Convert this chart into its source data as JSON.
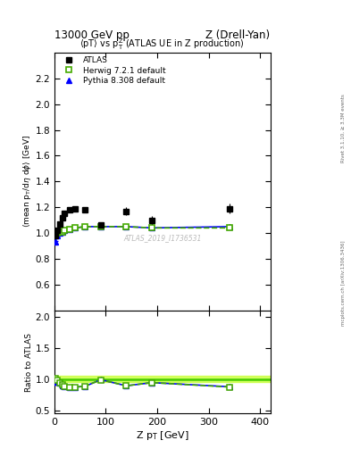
{
  "title_left": "13000 GeV pp",
  "title_right": "Z (Drell-Yan)",
  "main_title": "<pT> vs p$_{T}^{Z}$ (ATLAS UE in Z production)",
  "ylabel_main": "<mean p_{T}/d\\eta d\\phi> [GeV]",
  "ylabel_ratio": "Ratio to ATLAS",
  "xlabel": "Z p_{T} [GeV]",
  "right_label_top": "Rivet 3.1.10, ≥ 3.3M events",
  "right_label_bot": "mcplots.cern.ch [arXiv:1306.3436]",
  "watermark": "ATLAS_2019_I1736531",
  "atlas_x": [
    2,
    5,
    10,
    15,
    20,
    30,
    40,
    60,
    90,
    140,
    190,
    340
  ],
  "atlas_y": [
    0.98,
    1.02,
    1.07,
    1.12,
    1.15,
    1.18,
    1.19,
    1.18,
    1.06,
    1.17,
    1.1,
    1.19
  ],
  "atlas_yerr": [
    0.02,
    0.02,
    0.02,
    0.02,
    0.02,
    0.02,
    0.02,
    0.02,
    0.02,
    0.03,
    0.03,
    0.04
  ],
  "herwig_x": [
    2,
    5,
    10,
    15,
    20,
    30,
    40,
    60,
    90,
    140,
    190,
    340
  ],
  "herwig_y": [
    0.99,
    1.0,
    1.01,
    1.01,
    1.02,
    1.03,
    1.04,
    1.05,
    1.05,
    1.05,
    1.04,
    1.04
  ],
  "herwig_yerr": [
    0.003,
    0.003,
    0.003,
    0.003,
    0.003,
    0.003,
    0.003,
    0.003,
    0.003,
    0.003,
    0.003,
    0.003
  ],
  "pythia_x": [
    2,
    5,
    10,
    15,
    20,
    30,
    40,
    60,
    90,
    140,
    190,
    340
  ],
  "pythia_y": [
    0.93,
    0.98,
    1.0,
    1.01,
    1.02,
    1.03,
    1.04,
    1.05,
    1.05,
    1.05,
    1.04,
    1.05
  ],
  "pythia_yerr": [
    0.01,
    0.008,
    0.005,
    0.005,
    0.005,
    0.005,
    0.005,
    0.005,
    0.005,
    0.005,
    0.005,
    0.008
  ],
  "ratio_herwig_x": [
    2,
    5,
    10,
    15,
    20,
    30,
    40,
    60,
    90,
    140,
    190,
    340
  ],
  "ratio_herwig_y": [
    1.01,
    0.98,
    0.945,
    0.91,
    0.89,
    0.876,
    0.875,
    0.888,
    0.99,
    0.895,
    0.945,
    0.875
  ],
  "ratio_herwig_yerr": [
    0.02,
    0.02,
    0.02,
    0.02,
    0.015,
    0.015,
    0.015,
    0.015,
    0.015,
    0.025,
    0.025,
    0.035
  ],
  "ratio_pythia_x": [
    2,
    5,
    10,
    15,
    20,
    30,
    40,
    60,
    90,
    140,
    190,
    340
  ],
  "ratio_pythia_y": [
    0.95,
    0.96,
    0.94,
    0.902,
    0.888,
    0.874,
    0.873,
    0.887,
    0.992,
    0.895,
    0.945,
    0.88
  ],
  "ratio_pythia_yerr": [
    0.015,
    0.012,
    0.008,
    0.007,
    0.006,
    0.005,
    0.005,
    0.005,
    0.005,
    0.007,
    0.007,
    0.01
  ],
  "atlas_color": "#000000",
  "herwig_color": "#44aa00",
  "pythia_color": "#0000ff",
  "band_fill": "#ccff44",
  "band_edge": "#88cc00",
  "green_line": "#44cc00",
  "xlim": [
    0,
    420
  ],
  "ylim_main": [
    0.4,
    2.4
  ],
  "ylim_ratio": [
    0.45,
    2.1
  ],
  "yticks_main": [
    0.6,
    0.8,
    1.0,
    1.2,
    1.4,
    1.6,
    1.8,
    2.0,
    2.2
  ],
  "yticks_ratio": [
    0.5,
    1.0,
    1.5,
    2.0
  ],
  "xticks": [
    0,
    100,
    200,
    300,
    400
  ]
}
